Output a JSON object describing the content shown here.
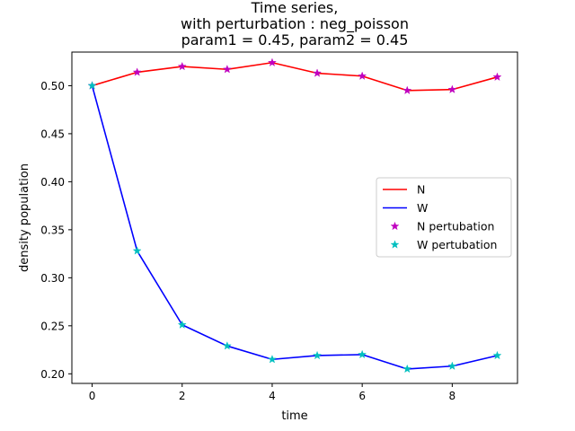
{
  "chart_data": {
    "type": "line",
    "title_lines": [
      "Time series,",
      "with perturbation : neg_poisson",
      "param1 = 0.45, param2 = 0.45"
    ],
    "xlabel": "time",
    "ylabel": "density population",
    "xlim": [
      -0.45,
      9.45
    ],
    "ylim": [
      0.19,
      0.535
    ],
    "xticks": [
      0,
      2,
      4,
      6,
      8
    ],
    "yticks": [
      0.2,
      0.25,
      0.3,
      0.35,
      0.4,
      0.45,
      0.5
    ],
    "x": [
      0,
      1,
      2,
      3,
      4,
      5,
      6,
      7,
      8,
      9
    ],
    "series": [
      {
        "name": "N",
        "kind": "line",
        "color": "#ff0000",
        "values": [
          0.5,
          0.514,
          0.52,
          0.517,
          0.524,
          0.513,
          0.51,
          0.495,
          0.496,
          0.509
        ]
      },
      {
        "name": "W",
        "kind": "line",
        "color": "#0000ff",
        "values": [
          0.5,
          0.328,
          0.251,
          0.229,
          0.215,
          0.219,
          0.22,
          0.205,
          0.208,
          0.219
        ]
      },
      {
        "name": "N pertubation",
        "kind": "marker",
        "color": "#bf00bf",
        "values": [
          0.5,
          0.514,
          0.52,
          0.517,
          0.524,
          0.513,
          0.51,
          0.495,
          0.496,
          0.509
        ]
      },
      {
        "name": "W pertubation",
        "kind": "marker",
        "color": "#00bfbf",
        "values": [
          0.5,
          0.328,
          0.251,
          0.229,
          0.215,
          0.219,
          0.22,
          0.205,
          0.208,
          0.219
        ]
      }
    ],
    "legend_position": "center-right",
    "grid": false
  }
}
